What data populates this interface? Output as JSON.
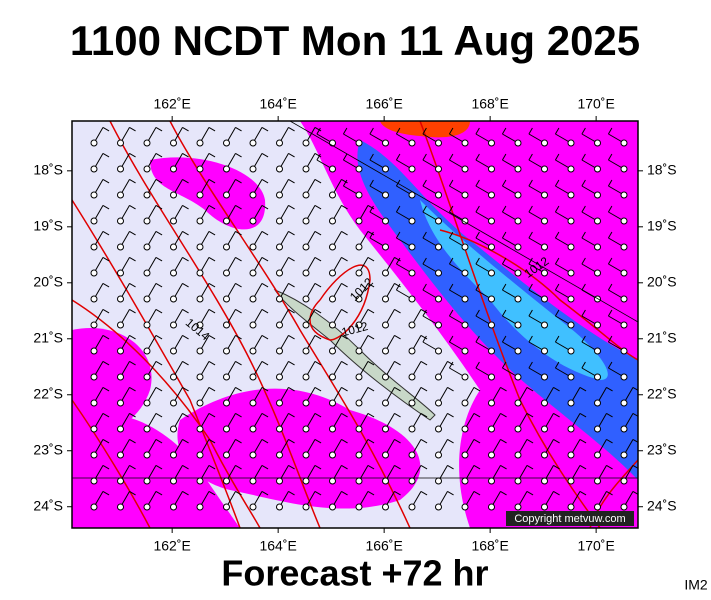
{
  "title": "1100 NCDT Mon 11 Aug 2025",
  "footer": "Forecast +72 hr",
  "corner_label": "IM2",
  "copyright": "Copyright metvuw.com",
  "map": {
    "lon_range": [
      160.11,
      170.79
    ],
    "lat_range": [
      -17.11,
      -24.38
    ],
    "lon_ticks": [
      {
        "value": 162,
        "label": "162˚E"
      },
      {
        "value": 164,
        "label": "164˚E"
      },
      {
        "value": 166,
        "label": "166˚E"
      },
      {
        "value": 168,
        "label": "168˚E"
      },
      {
        "value": 170,
        "label": "170˚E"
      }
    ],
    "lat_ticks": [
      {
        "value": -18,
        "label": "18˚S"
      },
      {
        "value": -19,
        "label": "19˚S"
      },
      {
        "value": -20,
        "label": "20˚S"
      },
      {
        "value": -21,
        "label": "21˚S"
      },
      {
        "value": -22,
        "label": "22˚S"
      },
      {
        "value": -23,
        "label": "23˚S"
      },
      {
        "value": -24,
        "label": "24˚S"
      }
    ],
    "isobar_labels": [
      "1012",
      "1012",
      "1014",
      "1012"
    ]
  }
}
